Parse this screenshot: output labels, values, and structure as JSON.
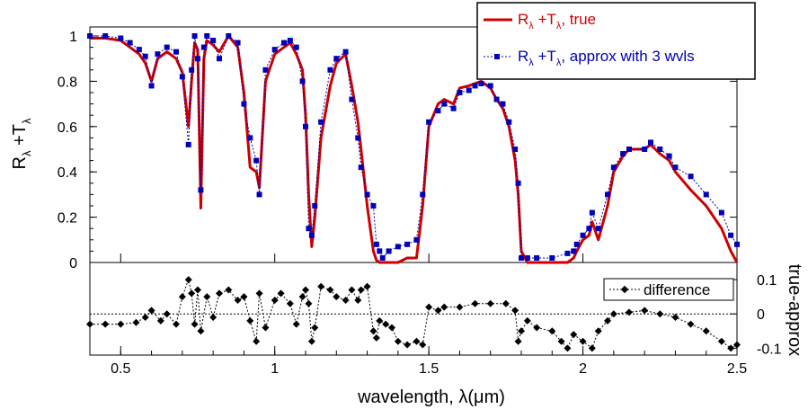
{
  "chart_data": [
    {
      "type": "line",
      "title": "",
      "xlabel": "wavelength, λ(μm)",
      "ylabel": "Rλ +Tλ",
      "xlim": [
        0.4,
        2.5
      ],
      "ylim": [
        0,
        1.02
      ],
      "x_ticks": [
        0.5,
        1,
        1.5,
        2,
        2.5
      ],
      "x_tick_labels": [
        "0.5",
        "1",
        "1.5",
        "2",
        "2.5"
      ],
      "y_ticks": [
        0,
        0.2,
        0.4,
        0.6,
        0.8,
        1
      ],
      "y_tick_labels": [
        "0",
        "0.2",
        "0.4",
        "0.6",
        "0.8",
        "1"
      ],
      "legend_position": "top-right",
      "colors": {
        "true": "#cc0000",
        "approx": "#0000bb"
      },
      "series": [
        {
          "name": "Rλ +Tλ, true",
          "style": "solid",
          "x": [
            0.4,
            0.45,
            0.5,
            0.53,
            0.56,
            0.58,
            0.6,
            0.62,
            0.65,
            0.68,
            0.7,
            0.72,
            0.73,
            0.74,
            0.75,
            0.76,
            0.77,
            0.78,
            0.8,
            0.82,
            0.85,
            0.88,
            0.9,
            0.92,
            0.94,
            0.95,
            0.97,
            1.0,
            1.03,
            1.05,
            1.07,
            1.09,
            1.1,
            1.11,
            1.12,
            1.13,
            1.15,
            1.18,
            1.2,
            1.23,
            1.25,
            1.27,
            1.28,
            1.3,
            1.32,
            1.33,
            1.34,
            1.35,
            1.37,
            1.4,
            1.43,
            1.46,
            1.48,
            1.5,
            1.53,
            1.55,
            1.58,
            1.6,
            1.63,
            1.65,
            1.67,
            1.7,
            1.72,
            1.74,
            1.76,
            1.78,
            1.79,
            1.8,
            1.82,
            1.85,
            1.9,
            1.95,
            1.97,
            1.98,
            2.0,
            2.02,
            2.03,
            2.05,
            2.08,
            2.1,
            2.13,
            2.15,
            2.2,
            2.22,
            2.25,
            2.28,
            2.3,
            2.35,
            2.4,
            2.45,
            2.48,
            2.5
          ],
          "y": [
            0.99,
            0.99,
            0.98,
            0.95,
            0.92,
            0.88,
            0.8,
            0.9,
            0.93,
            0.9,
            0.84,
            0.6,
            0.8,
            0.97,
            0.94,
            0.24,
            0.9,
            0.98,
            0.96,
            0.93,
            1.0,
            0.95,
            0.75,
            0.42,
            0.4,
            0.33,
            0.8,
            0.92,
            0.95,
            0.97,
            0.92,
            0.85,
            0.65,
            0.3,
            0.07,
            0.2,
            0.55,
            0.78,
            0.88,
            0.92,
            0.78,
            0.62,
            0.5,
            0.25,
            0.05,
            0.01,
            0.0,
            0.0,
            0.0,
            0.0,
            0.02,
            0.02,
            0.25,
            0.6,
            0.7,
            0.72,
            0.7,
            0.77,
            0.78,
            0.79,
            0.8,
            0.77,
            0.72,
            0.68,
            0.6,
            0.45,
            0.3,
            0.05,
            0.0,
            0.0,
            0.0,
            0.0,
            0.02,
            0.05,
            0.1,
            0.12,
            0.18,
            0.1,
            0.25,
            0.4,
            0.47,
            0.5,
            0.5,
            0.52,
            0.48,
            0.45,
            0.4,
            0.32,
            0.25,
            0.15,
            0.05,
            0.0
          ]
        },
        {
          "name": "Rλ +Tλ, approx with 3 wvls",
          "style": "dotted-markers",
          "x": [
            0.4,
            0.45,
            0.5,
            0.53,
            0.56,
            0.58,
            0.6,
            0.62,
            0.65,
            0.68,
            0.7,
            0.72,
            0.73,
            0.74,
            0.75,
            0.76,
            0.77,
            0.78,
            0.8,
            0.82,
            0.85,
            0.88,
            0.9,
            0.92,
            0.94,
            0.95,
            0.97,
            1.0,
            1.03,
            1.05,
            1.07,
            1.09,
            1.1,
            1.11,
            1.12,
            1.13,
            1.15,
            1.18,
            1.2,
            1.23,
            1.25,
            1.27,
            1.28,
            1.3,
            1.32,
            1.33,
            1.34,
            1.35,
            1.37,
            1.4,
            1.43,
            1.46,
            1.48,
            1.5,
            1.53,
            1.55,
            1.58,
            1.6,
            1.63,
            1.65,
            1.67,
            1.7,
            1.72,
            1.74,
            1.76,
            1.78,
            1.79,
            1.8,
            1.82,
            1.85,
            1.9,
            1.95,
            1.97,
            1.98,
            2.0,
            2.02,
            2.03,
            2.05,
            2.08,
            2.1,
            2.13,
            2.15,
            2.2,
            2.22,
            2.25,
            2.28,
            2.3,
            2.35,
            2.4,
            2.45,
            2.48,
            2.5
          ],
          "y": [
            1.0,
            1.0,
            0.99,
            0.97,
            0.94,
            0.91,
            0.78,
            0.92,
            0.95,
            0.93,
            0.82,
            0.52,
            0.85,
            1.0,
            0.9,
            0.32,
            0.95,
            1.0,
            0.98,
            0.9,
            1.0,
            0.97,
            0.7,
            0.55,
            0.45,
            0.3,
            0.85,
            0.94,
            0.97,
            0.98,
            0.95,
            0.8,
            0.6,
            0.15,
            0.12,
            0.25,
            0.62,
            0.85,
            0.9,
            0.93,
            0.72,
            0.55,
            0.42,
            0.3,
            0.25,
            0.08,
            0.05,
            0.02,
            0.05,
            0.07,
            0.08,
            0.1,
            0.3,
            0.62,
            0.67,
            0.7,
            0.68,
            0.75,
            0.76,
            0.78,
            0.79,
            0.78,
            0.72,
            0.7,
            0.62,
            0.5,
            0.35,
            0.02,
            0.02,
            0.02,
            0.02,
            0.04,
            0.05,
            0.08,
            0.12,
            0.15,
            0.22,
            0.15,
            0.3,
            0.42,
            0.48,
            0.5,
            0.5,
            0.53,
            0.5,
            0.47,
            0.42,
            0.38,
            0.3,
            0.22,
            0.12,
            0.08
          ]
        }
      ]
    },
    {
      "type": "scatter",
      "title": "",
      "xlabel": "wavelength, λ(μm)",
      "ylabel": "true-approx",
      "xlim": [
        0.4,
        2.5
      ],
      "ylim": [
        -0.12,
        0.15
      ],
      "y_ticks": [
        -0.1,
        0,
        0.1
      ],
      "y_tick_labels": [
        "-0.1",
        "0",
        "0.1"
      ],
      "legend_position": "top-right",
      "series": [
        {
          "name": "difference",
          "style": "dotted-markers",
          "x": [
            0.4,
            0.45,
            0.5,
            0.55,
            0.58,
            0.6,
            0.63,
            0.65,
            0.68,
            0.7,
            0.72,
            0.73,
            0.74,
            0.75,
            0.76,
            0.78,
            0.8,
            0.82,
            0.85,
            0.88,
            0.9,
            0.92,
            0.94,
            0.95,
            0.97,
            1.0,
            1.02,
            1.05,
            1.07,
            1.09,
            1.1,
            1.11,
            1.12,
            1.13,
            1.15,
            1.18,
            1.2,
            1.23,
            1.25,
            1.27,
            1.28,
            1.3,
            1.32,
            1.33,
            1.34,
            1.36,
            1.38,
            1.4,
            1.43,
            1.46,
            1.48,
            1.5,
            1.53,
            1.55,
            1.6,
            1.65,
            1.7,
            1.75,
            1.78,
            1.79,
            1.8,
            1.82,
            1.85,
            1.9,
            1.93,
            1.95,
            1.97,
            2.0,
            2.03,
            2.05,
            2.08,
            2.1,
            2.15,
            2.2,
            2.25,
            2.3,
            2.35,
            2.4,
            2.45,
            2.48,
            2.5
          ],
          "y": [
            -0.03,
            -0.03,
            -0.03,
            -0.025,
            -0.01,
            0.01,
            -0.02,
            0.0,
            -0.03,
            0.05,
            0.1,
            0.06,
            -0.03,
            0.07,
            -0.05,
            0.05,
            -0.01,
            0.06,
            0.07,
            0.04,
            0.05,
            -0.02,
            -0.08,
            0.06,
            -0.04,
            0.04,
            0.06,
            0.03,
            -0.03,
            0.05,
            0.07,
            0.03,
            -0.08,
            -0.04,
            0.08,
            0.07,
            0.05,
            0.04,
            0.07,
            0.04,
            0.07,
            0.08,
            -0.05,
            -0.07,
            -0.02,
            -0.03,
            -0.04,
            -0.08,
            -0.09,
            -0.08,
            -0.09,
            0.02,
            0.01,
            0.02,
            0.02,
            0.03,
            0.03,
            0.03,
            0.01,
            -0.08,
            -0.05,
            -0.02,
            -0.04,
            -0.05,
            -0.08,
            -0.1,
            -0.06,
            -0.08,
            -0.1,
            -0.05,
            -0.02,
            0.0,
            0.005,
            0.01,
            0.0,
            -0.01,
            -0.03,
            -0.05,
            -0.08,
            -0.1,
            -0.09
          ]
        }
      ]
    }
  ]
}
